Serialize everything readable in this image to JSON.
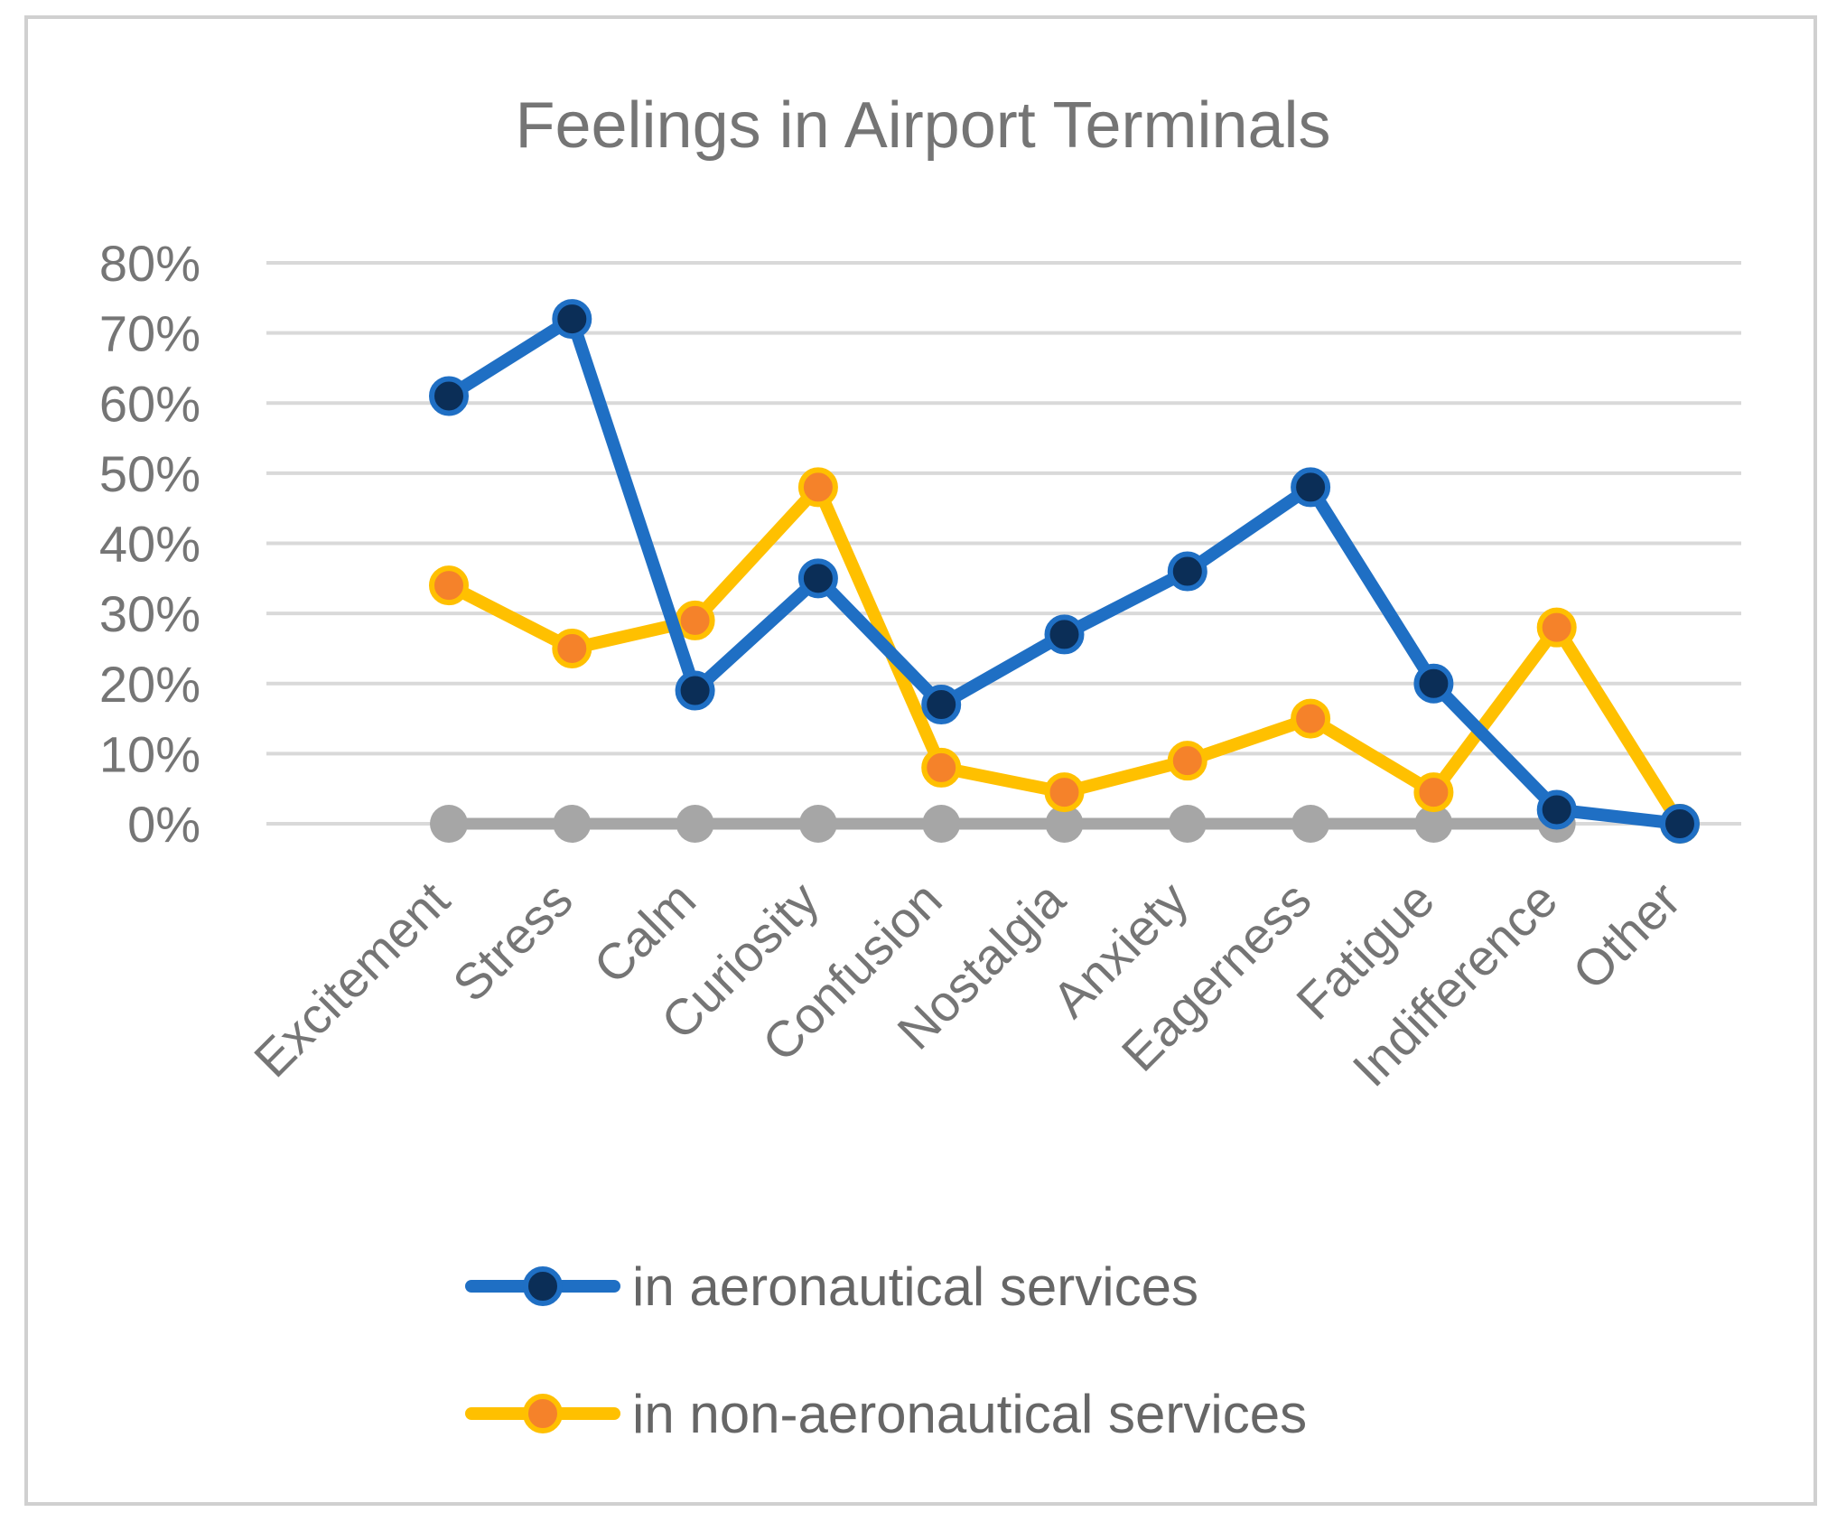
{
  "chart_data": {
    "type": "line",
    "title": "Feelings in Airport Terminals",
    "xlabel": "",
    "ylabel": "",
    "categories": [
      "Excitement",
      "Stress",
      "Calm",
      "Curiosity",
      "Confusion",
      "Nostalgia",
      "Anxiety",
      "Eagerness",
      "Fatigue",
      "Indifference",
      "Other"
    ],
    "ylim": [
      0,
      0.8
    ],
    "yticks": [
      {
        "value": 0,
        "label": "0%"
      },
      {
        "value": 0.1,
        "label": "10%"
      },
      {
        "value": 0.2,
        "label": "20%"
      },
      {
        "value": 0.3,
        "label": "30%"
      },
      {
        "value": 0.4,
        "label": "40%"
      },
      {
        "value": 0.5,
        "label": "50%"
      },
      {
        "value": 0.6,
        "label": "60%"
      },
      {
        "value": 0.7,
        "label": "70%"
      },
      {
        "value": 0.8,
        "label": "80%"
      }
    ],
    "grid": true,
    "legend_position": "bottom",
    "series": [
      {
        "name": "in aeronautical services",
        "line_color": "#1f6fc4",
        "marker_color": "#0b2e57",
        "in_legend": true,
        "values": [
          0.61,
          0.72,
          0.19,
          0.35,
          0.17,
          0.27,
          0.36,
          0.48,
          0.2,
          0.02,
          0.0
        ]
      },
      {
        "name": "in non-aeronautical services",
        "line_color": "#ffc000",
        "marker_color": "#f5822a",
        "in_legend": true,
        "values": [
          0.34,
          0.25,
          0.29,
          0.48,
          0.08,
          0.045,
          0.09,
          0.15,
          0.045,
          0.28,
          0.0
        ]
      },
      {
        "name": "baseline",
        "line_color": "#a6a6a6",
        "marker_color": "#a6a6a6",
        "in_legend": false,
        "values": [
          0,
          0,
          0,
          0,
          0,
          0,
          0,
          0,
          0,
          0,
          null
        ]
      }
    ]
  }
}
